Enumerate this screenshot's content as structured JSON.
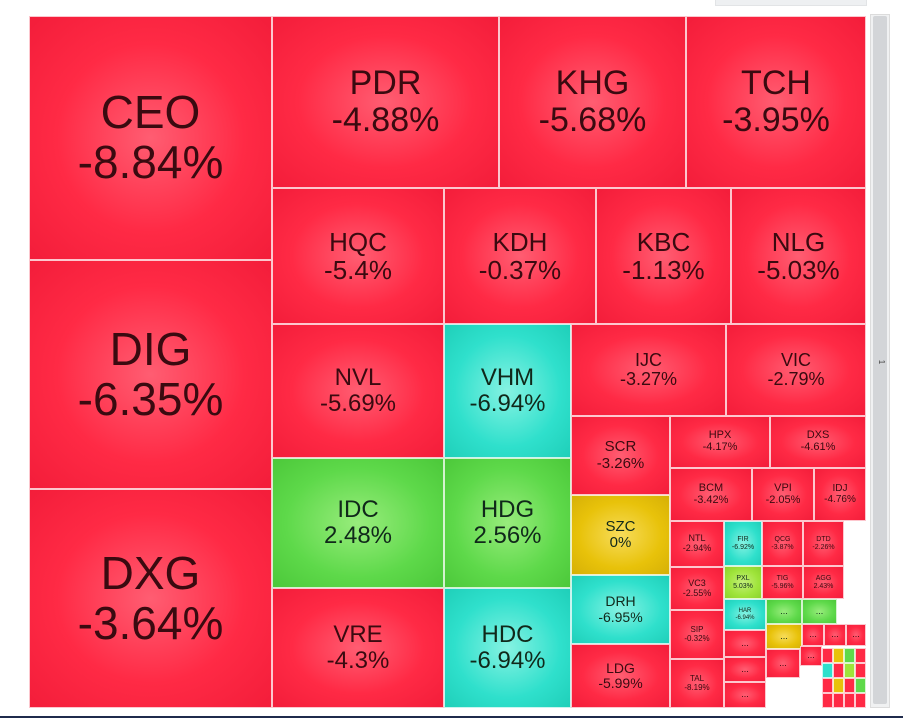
{
  "scrollbar": {
    "label": "1"
  },
  "colors": {
    "red": "#ff2a45",
    "cyan": "#2fe0cc",
    "green": "#5ed94a",
    "lime": "#9fe43a",
    "yellow": "#e8c20a",
    "navy": "#1f2b4c"
  },
  "chart_data": {
    "type": "treemap",
    "unit": "%",
    "tiles": [
      {
        "name": "CEO",
        "value": -8.84,
        "label": "-8.84%",
        "color": "red"
      },
      {
        "name": "DIG",
        "value": -6.35,
        "label": "-6.35%",
        "color": "red"
      },
      {
        "name": "DXG",
        "value": -3.64,
        "label": "-3.64%",
        "color": "red"
      },
      {
        "name": "PDR",
        "value": -4.88,
        "label": "-4.88%",
        "color": "red"
      },
      {
        "name": "KHG",
        "value": -5.68,
        "label": "-5.68%",
        "color": "red"
      },
      {
        "name": "TCH",
        "value": -3.95,
        "label": "-3.95%",
        "color": "red"
      },
      {
        "name": "HQC",
        "value": -5.4,
        "label": "-5.4%",
        "color": "red"
      },
      {
        "name": "KDH",
        "value": -0.37,
        "label": "-0.37%",
        "color": "red"
      },
      {
        "name": "KBC",
        "value": -1.13,
        "label": "-1.13%",
        "color": "red"
      },
      {
        "name": "NLG",
        "value": -5.03,
        "label": "-5.03%",
        "color": "red"
      },
      {
        "name": "NVL",
        "value": -5.69,
        "label": "-5.69%",
        "color": "red"
      },
      {
        "name": "VHM",
        "value": -6.94,
        "label": "-6.94%",
        "color": "cyan"
      },
      {
        "name": "IJC",
        "value": -3.27,
        "label": "-3.27%",
        "color": "red"
      },
      {
        "name": "VIC",
        "value": -2.79,
        "label": "-2.79%",
        "color": "red"
      },
      {
        "name": "SCR",
        "value": -3.26,
        "label": "-3.26%",
        "color": "red"
      },
      {
        "name": "HPX",
        "value": -4.17,
        "label": "-4.17%",
        "color": "red"
      },
      {
        "name": "DXS",
        "value": -4.61,
        "label": "-4.61%",
        "color": "red"
      },
      {
        "name": "BCM",
        "value": -3.42,
        "label": "-3.42%",
        "color": "red"
      },
      {
        "name": "VPI",
        "value": -2.05,
        "label": "-2.05%",
        "color": "red"
      },
      {
        "name": "IDJ",
        "value": -4.76,
        "label": "-4.76%",
        "color": "red"
      },
      {
        "name": "IDC",
        "value": 2.48,
        "label": "2.48%",
        "color": "green"
      },
      {
        "name": "HDG",
        "value": 2.56,
        "label": "2.56%",
        "color": "green"
      },
      {
        "name": "SZC",
        "value": 0,
        "label": "0%",
        "color": "yellow"
      },
      {
        "name": "NTL",
        "value": -2.94,
        "label": "-2.94%",
        "color": "red"
      },
      {
        "name": "FIR",
        "value": -6.92,
        "label": "-6.92%",
        "color": "cyan"
      },
      {
        "name": "QCG",
        "value": -3.87,
        "label": "-3.87%",
        "color": "red"
      },
      {
        "name": "DTD",
        "value": -2.26,
        "label": "-2.26%",
        "color": "red"
      },
      {
        "name": "PXL",
        "value": 5.03,
        "label": "5.03%",
        "color": "lime"
      },
      {
        "name": "TIG",
        "value": -5.96,
        "label": "-5.96%",
        "color": "red"
      },
      {
        "name": "AGG",
        "value": 2.43,
        "label": "2.43%",
        "color": "red"
      },
      {
        "name": "DRH",
        "value": -6.95,
        "label": "-6.95%",
        "color": "cyan"
      },
      {
        "name": "VC3",
        "value": -2.55,
        "label": "-2.55%",
        "color": "red"
      },
      {
        "name": "HAR",
        "value": -6.94,
        "label": "-6.94%",
        "color": "cyan"
      },
      {
        "name": "VRE",
        "value": -4.3,
        "label": "-4.3%",
        "color": "red"
      },
      {
        "name": "HDC",
        "value": -6.94,
        "label": "-6.94%",
        "color": "cyan"
      },
      {
        "name": "SIP",
        "value": -0.32,
        "label": "-0.32%",
        "color": "red"
      },
      {
        "name": "LDG",
        "value": -5.99,
        "label": "-5.99%",
        "color": "red"
      },
      {
        "name": "TAL",
        "value": -8.19,
        "label": "-8.19%",
        "color": "red"
      }
    ],
    "small_tiles": [
      {
        "name": "...",
        "color": "green"
      },
      {
        "name": "...",
        "color": "green"
      },
      {
        "name": "...",
        "color": "yellow"
      },
      {
        "name": "...",
        "color": "red"
      },
      {
        "name": "...",
        "color": "red"
      },
      {
        "name": "...",
        "color": "red"
      },
      {
        "name": "...",
        "color": "red"
      },
      {
        "name": "...",
        "color": "red"
      },
      {
        "name": "...",
        "color": "red"
      },
      {
        "name": "...",
        "color": "red"
      },
      {
        "name": "...",
        "color": "red"
      }
    ]
  }
}
